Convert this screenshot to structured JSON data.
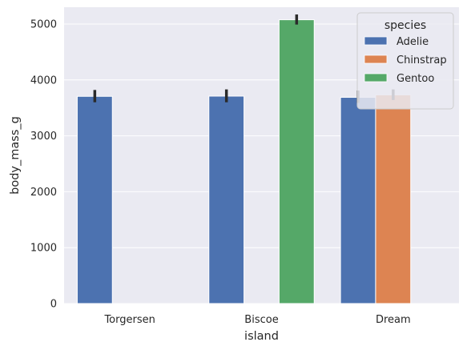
{
  "chart_data": {
    "type": "bar",
    "xlabel": "island",
    "ylabel": "body_mass_g",
    "ylim": [
      0,
      5300
    ],
    "yticks": [
      0,
      1000,
      2000,
      3000,
      4000,
      5000
    ],
    "categories": [
      "Torgersen",
      "Biscoe",
      "Dream"
    ],
    "series": [
      {
        "name": "Adelie",
        "color": "#4c72b0",
        "values": [
          3706,
          3710,
          3688
        ],
        "ci": [
          [
            3600,
            3820
          ],
          [
            3600,
            3830
          ],
          [
            3590,
            3810
          ]
        ]
      },
      {
        "name": "Chinstrap",
        "color": "#dd8452",
        "values": [
          null,
          null,
          3733
        ],
        "ci": [
          null,
          null,
          [
            3640,
            3830
          ]
        ]
      },
      {
        "name": "Gentoo",
        "color": "#55a868",
        "values": [
          null,
          5076,
          null
        ],
        "ci": [
          null,
          [
            4990,
            5170
          ],
          null
        ]
      }
    ],
    "legend": {
      "title": "species",
      "position": "top-right"
    },
    "grid": true,
    "error_bar_color": "#2a2a2a",
    "background": "#eaeaf2"
  }
}
